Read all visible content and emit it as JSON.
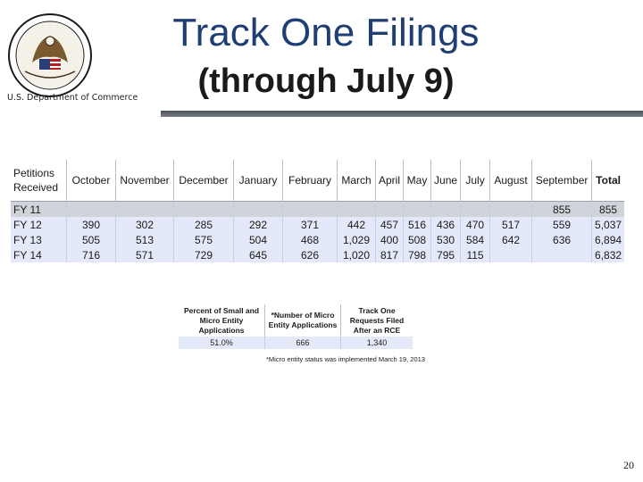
{
  "header": {
    "department": "U.S. Department of Commerce",
    "title": "Track One Filings",
    "subtitle": "(through July 9)"
  },
  "main_table": {
    "columns": [
      "Petitions Received",
      "October",
      "November",
      "December",
      "January",
      "February",
      "March",
      "April",
      "May",
      "June",
      "July",
      "August",
      "September",
      "Total"
    ],
    "rows": [
      [
        "FY 11",
        "",
        "",
        "",
        "",
        "",
        "",
        "",
        "",
        "",
        "",
        "",
        "855",
        "855"
      ],
      [
        "FY 12",
        "390",
        "302",
        "285",
        "292",
        "371",
        "442",
        "457",
        "516",
        "436",
        "470",
        "517",
        "559",
        "5,037"
      ],
      [
        "FY 13",
        "505",
        "513",
        "575",
        "504",
        "468",
        "1,029",
        "400",
        "508",
        "530",
        "584",
        "642",
        "636",
        "6,894"
      ],
      [
        "FY 14",
        "716",
        "571",
        "729",
        "645",
        "626",
        "1,020",
        "817",
        "798",
        "795",
        "115",
        "",
        "",
        "6,832"
      ]
    ]
  },
  "small_table": {
    "headers": [
      "Percent of Small and Micro Entity Applications",
      "*Number of Micro Entity Applications",
      "Track One Requests Filed After an RCE"
    ],
    "values": [
      "51.0%",
      "666",
      "1,340"
    ]
  },
  "footnote": "*Micro entity status was implemented March 19, 2013",
  "page_number": "20",
  "colors": {
    "title": "#1f3f74",
    "row_fill": "#e3e9f9",
    "first_row_fill": "#d0d3d9"
  }
}
